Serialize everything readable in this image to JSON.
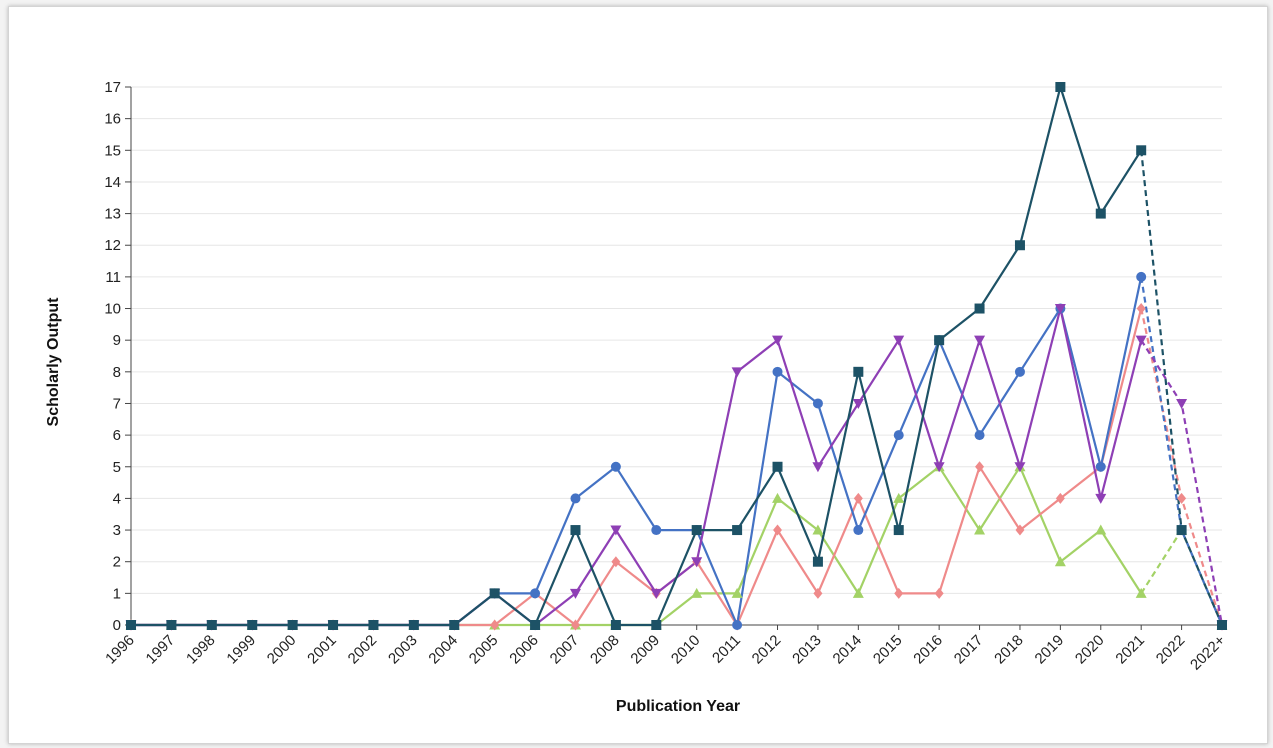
{
  "chart_data": {
    "type": "line",
    "xlabel": "Publication Year",
    "ylabel": "Scholarly Output",
    "categories": [
      "1996",
      "1997",
      "1998",
      "1999",
      "2000",
      "2001",
      "2002",
      "2003",
      "2004",
      "2005",
      "2006",
      "2007",
      "2008",
      "2009",
      "2010",
      "2011",
      "2012",
      "2013",
      "2014",
      "2015",
      "2016",
      "2017",
      "2018",
      "2019",
      "2020",
      "2021",
      "2022",
      "2022+"
    ],
    "ylim": [
      0,
      17
    ],
    "yticks": [
      "0",
      "1",
      "2",
      "3",
      "4",
      "5",
      "6",
      "7",
      "8",
      "9",
      "10",
      "11",
      "12",
      "13",
      "14",
      "15",
      "16",
      "17"
    ],
    "grid": "horizontal",
    "projected_from_index": 25,
    "series": [
      {
        "color": "#1d5266",
        "marker": "square",
        "values": [
          0,
          0,
          0,
          0,
          0,
          0,
          0,
          0,
          0,
          1,
          0,
          3,
          0,
          0,
          3,
          3,
          5,
          2,
          8,
          3,
          9,
          10,
          12,
          17,
          13,
          15,
          3,
          0
        ]
      },
      {
        "color": "#4472c4",
        "marker": "circle",
        "values": [
          0,
          0,
          0,
          0,
          0,
          0,
          0,
          0,
          0,
          1,
          1,
          4,
          5,
          3,
          3,
          0,
          8,
          7,
          3,
          6,
          9,
          6,
          8,
          10,
          5,
          11,
          3,
          0
        ]
      },
      {
        "color": "#8e3fb5",
        "marker": "triangle-down",
        "values": [
          0,
          0,
          0,
          0,
          0,
          0,
          0,
          0,
          0,
          1,
          0,
          1,
          3,
          1,
          2,
          8,
          9,
          5,
          7,
          9,
          5,
          9,
          5,
          10,
          4,
          9,
          7,
          0
        ]
      },
      {
        "color": "#ef8a8a",
        "marker": "diamond",
        "values": [
          0,
          0,
          0,
          0,
          0,
          0,
          0,
          0,
          0,
          0,
          1,
          0,
          2,
          1,
          2,
          0,
          3,
          1,
          4,
          1,
          1,
          5,
          3,
          4,
          5,
          10,
          4,
          0
        ]
      },
      {
        "color": "#a3d266",
        "marker": "triangle-up",
        "values": [
          0,
          0,
          0,
          0,
          0,
          0,
          0,
          0,
          0,
          0,
          0,
          0,
          0,
          0,
          1,
          1,
          4,
          3,
          1,
          4,
          5,
          3,
          5,
          2,
          3,
          1,
          3,
          0
        ]
      }
    ]
  }
}
